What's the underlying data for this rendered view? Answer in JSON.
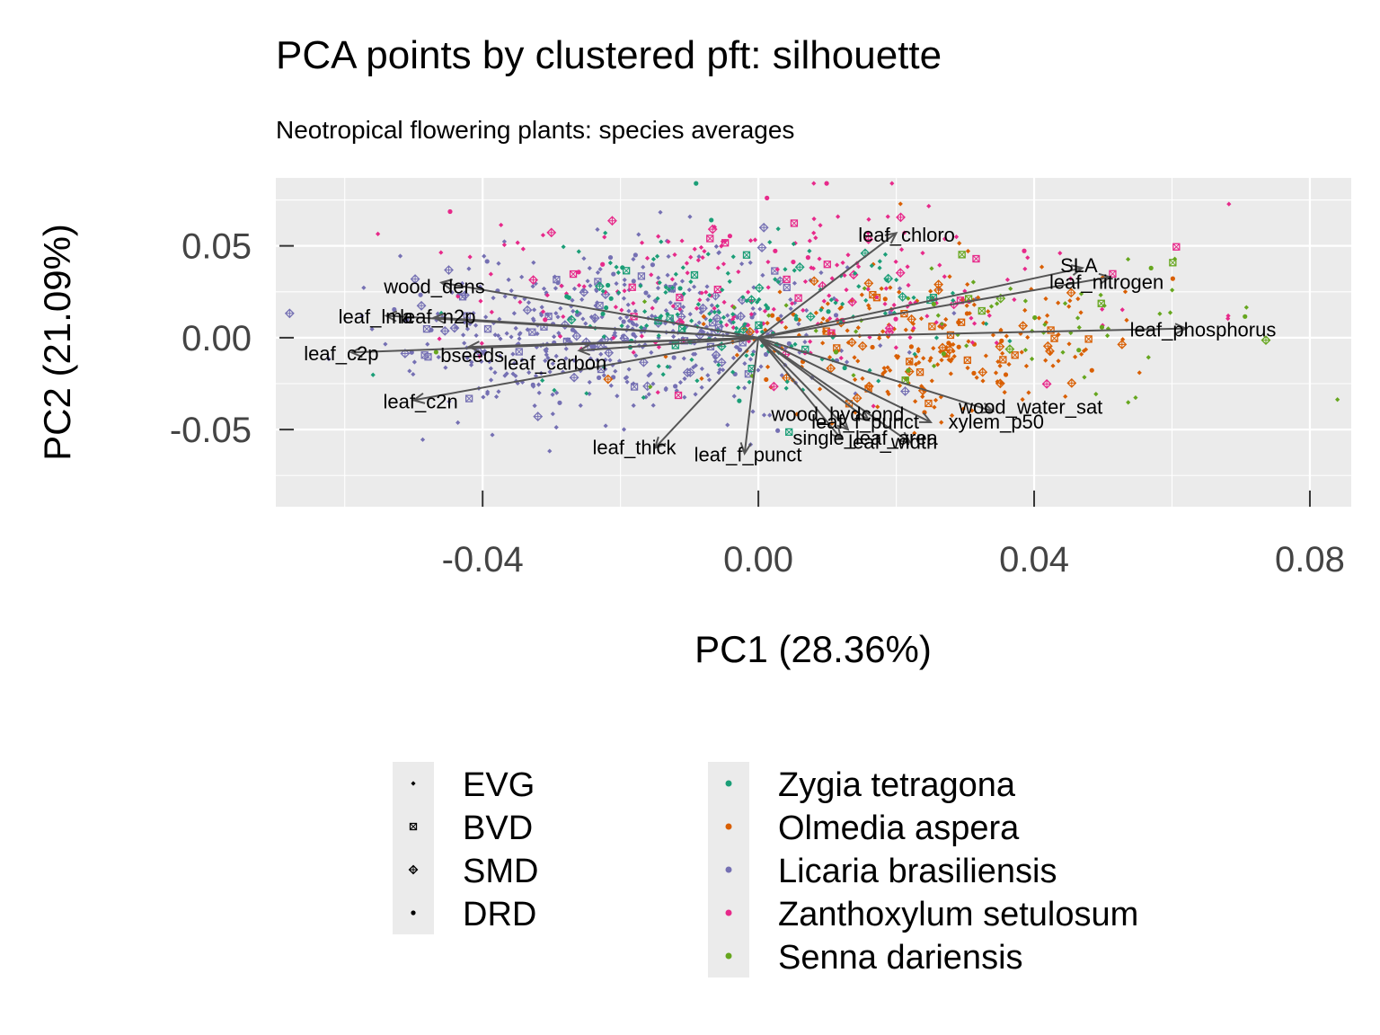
{
  "chart_data": {
    "type": "scatter",
    "title": "PCA points by clustered pft: silhouette",
    "subtitle": "Neotropical flowering plants: species averages",
    "xlabel": "PC1 (28.36%)",
    "ylabel": "PC2 (21.09%)",
    "xlim": [
      -0.07,
      0.086
    ],
    "ylim": [
      -0.092,
      0.087
    ],
    "xticks": [
      {
        "value": -0.04,
        "label": "-0.04"
      },
      {
        "value": 0.0,
        "label": "0.00"
      },
      {
        "value": 0.04,
        "label": "0.04"
      },
      {
        "value": 0.08,
        "label": "0.08"
      }
    ],
    "yticks": [
      {
        "value": 0.05,
        "label": "0.05"
      },
      {
        "value": 0.0,
        "label": "0.00"
      },
      {
        "value": -0.05,
        "label": "-0.05"
      }
    ],
    "grid": true,
    "legend_position": "bottom",
    "shape_legend": [
      {
        "name": "EVG",
        "shape": "small-diamond"
      },
      {
        "name": "BVD",
        "shape": "square-cross"
      },
      {
        "name": "SMD",
        "shape": "diamond-plus"
      },
      {
        "name": "DRD",
        "shape": "dot"
      }
    ],
    "color_legend": [
      {
        "name": "Zygia tetragona",
        "color": "#1b9e77"
      },
      {
        "name": "Olmedia aspera",
        "color": "#d95f02"
      },
      {
        "name": "Licaria brasiliensis",
        "color": "#7570b3"
      },
      {
        "name": "Zanthoxylum setulosum",
        "color": "#e7298a"
      },
      {
        "name": "Senna dariensis",
        "color": "#66a61e"
      }
    ],
    "clusters": [
      {
        "name": "Licaria brasiliensis",
        "cx": -0.02,
        "cy": 0.004,
        "sx": 0.016,
        "sy": 0.022,
        "n": 520
      },
      {
        "name": "Olmedia aspera",
        "cx": 0.024,
        "cy": -0.005,
        "sx": 0.014,
        "sy": 0.02,
        "n": 260
      },
      {
        "name": "Zanthoxylum setulosum",
        "cx": 0.004,
        "cy": 0.028,
        "sx": 0.022,
        "sy": 0.024,
        "n": 230
      },
      {
        "name": "Zygia tetragona",
        "cx": -0.004,
        "cy": 0.016,
        "sx": 0.015,
        "sy": 0.022,
        "n": 180
      },
      {
        "name": "Senna dariensis",
        "cx": 0.036,
        "cy": 0.008,
        "sx": 0.02,
        "sy": 0.018,
        "n": 70
      }
    ],
    "loadings": [
      {
        "name": "leaf_chloro",
        "x": 0.02,
        "y": 0.057
      },
      {
        "name": "SLA",
        "x": 0.047,
        "y": 0.038
      },
      {
        "name": "leaf_nitrogen",
        "x": 0.051,
        "y": 0.033
      },
      {
        "name": "leaf_phosphorus",
        "x": 0.062,
        "y": 0.005
      },
      {
        "name": "wood_water_sat",
        "x": 0.034,
        "y": -0.04
      },
      {
        "name": "xylem_p50",
        "x": 0.025,
        "y": -0.046
      },
      {
        "name": "wood_hydcond",
        "x": 0.016,
        "y": -0.045
      },
      {
        "name": "leaf_f_punct",
        "x": 0.013,
        "y": -0.05
      },
      {
        "name": "single_leaf_area",
        "x": 0.012,
        "y": -0.055
      },
      {
        "name": "leaf_width",
        "x": 0.022,
        "y": -0.057
      },
      {
        "name": "leaf_thick",
        "x": -0.015,
        "y": -0.06
      },
      {
        "name": "leaf_f_punct",
        "x": -0.002,
        "y": -0.063
      },
      {
        "name": "leaf_carbon",
        "x": -0.026,
        "y": -0.007
      },
      {
        "name": "bseeds",
        "x": -0.042,
        "y": -0.005
      },
      {
        "name": "leaf_c2p",
        "x": -0.059,
        "y": -0.008
      },
      {
        "name": "leaf_c2n",
        "x": -0.05,
        "y": -0.034
      },
      {
        "name": "leaf_lma",
        "x": -0.054,
        "y": 0.012
      },
      {
        "name": "leaf_n2p",
        "x": -0.047,
        "y": 0.011
      },
      {
        "name": "wood_dens",
        "x": -0.046,
        "y": 0.03
      }
    ],
    "loading_labels": [
      {
        "text": "leaf_chloro",
        "x": 0.0215,
        "y": 0.055
      },
      {
        "text": "SLA",
        "x": 0.0465,
        "y": 0.0385
      },
      {
        "text": "leaf_nitrogen",
        "x": 0.0505,
        "y": 0.0295
      },
      {
        "text": "leaf_phosphorus",
        "x": 0.0645,
        "y": 0.0035
      },
      {
        "text": "wood_water_sat",
        "x": 0.0395,
        "y": -0.0385
      },
      {
        "text": "xylem_p50",
        "x": 0.0345,
        "y": -0.0465
      },
      {
        "text": "wood_hydcond",
        "x": 0.0115,
        "y": -0.0425
      },
      {
        "text": "leaf_f_punct",
        "x": 0.0155,
        "y": -0.0465
      },
      {
        "text": "single_leaf_area",
        "x": 0.0155,
        "y": -0.0555
      },
      {
        "text": "leaf_width",
        "x": 0.0195,
        "y": -0.0575
      },
      {
        "text": "leaf_thick",
        "x": -0.018,
        "y": -0.0605
      },
      {
        "text": "leaf_f_punct",
        "x": -0.0015,
        "y": -0.0645
      },
      {
        "text": "leaf_carbon",
        "x": -0.0295,
        "y": -0.0145
      },
      {
        "text": "bseeds",
        "x": -0.0415,
        "y": -0.0105
      },
      {
        "text": "leaf_c2p",
        "x": -0.0605,
        "y": -0.0095
      },
      {
        "text": "leaf_c2n",
        "x": -0.049,
        "y": -0.0355
      },
      {
        "text": "leaf_lma",
        "x": -0.0555,
        "y": 0.0105
      },
      {
        "text": "leaf_n2p",
        "x": -0.0465,
        "y": 0.0105
      },
      {
        "text": "wood_dens",
        "x": -0.047,
        "y": 0.027
      }
    ]
  }
}
